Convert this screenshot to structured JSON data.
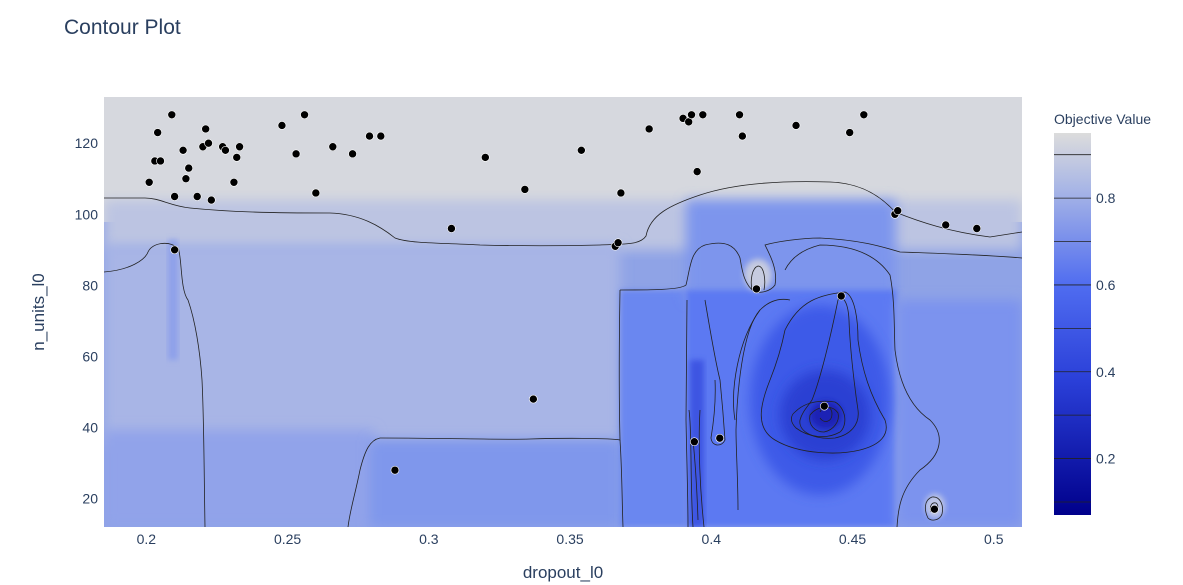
{
  "chart_data": {
    "type": "contour",
    "title": "Contour Plot",
    "xlabel": "dropout_l0",
    "ylabel": "n_units_l0",
    "xlim": [
      0.185,
      0.51
    ],
    "ylim": [
      12,
      133
    ],
    "x_ticks": [
      0.2,
      0.25,
      0.3,
      0.35,
      0.4,
      0.45,
      0.5
    ],
    "x_tick_labels": [
      "0.2",
      "0.25",
      "0.3",
      "0.35",
      "0.4",
      "0.45",
      "0.5"
    ],
    "y_ticks": [
      20,
      40,
      60,
      80,
      100,
      120
    ],
    "y_tick_labels": [
      "20",
      "40",
      "60",
      "80",
      "100",
      "120"
    ],
    "colorbar": {
      "title": "Objective Value",
      "range": [
        0.07,
        0.95
      ],
      "ticks": [
        0.2,
        0.4,
        0.6,
        0.8
      ],
      "tick_labels": [
        "0.2",
        "0.4",
        "0.6",
        "0.8"
      ],
      "colorscale": [
        "#00008b",
        "#3f5ff0",
        "#a4b4e8",
        "#dcdcdc"
      ]
    },
    "colors": {
      "marker": "#000000",
      "contour_line": "#222222",
      "grid": "#ffffff"
    },
    "grid": false,
    "legend": "colorbar-right",
    "series": [
      {
        "type": "scatter",
        "x": [
          0.201,
          0.203,
          0.204,
          0.205,
          0.209,
          0.21,
          0.213,
          0.214,
          0.215,
          0.218,
          0.22,
          0.221,
          0.222,
          0.223,
          0.227,
          0.228,
          0.231,
          0.232,
          0.233,
          0.248,
          0.253,
          0.256,
          0.26,
          0.266,
          0.273,
          0.279,
          0.283,
          0.308,
          0.32,
          0.334,
          0.354,
          0.366,
          0.367,
          0.368,
          0.378,
          0.39,
          0.392,
          0.393,
          0.395,
          0.397,
          0.41,
          0.411,
          0.43,
          0.449,
          0.454,
          0.465,
          0.466,
          0.483,
          0.494,
          0.21,
          0.416,
          0.446,
          0.337,
          0.44,
          0.394,
          0.403,
          0.288,
          0.479
        ],
        "y": [
          109,
          115,
          123,
          115,
          128,
          105,
          118,
          110,
          113,
          105,
          119,
          124,
          120,
          104,
          119,
          118,
          109,
          116,
          119,
          125,
          117,
          128,
          106,
          119,
          117,
          122,
          122,
          96,
          116,
          107,
          118,
          91,
          92,
          106,
          124,
          127,
          126,
          128,
          112,
          128,
          128,
          122,
          125,
          123,
          128,
          100,
          101,
          97,
          96,
          90,
          79,
          77,
          48,
          46,
          36,
          37,
          28,
          17
        ]
      }
    ]
  }
}
